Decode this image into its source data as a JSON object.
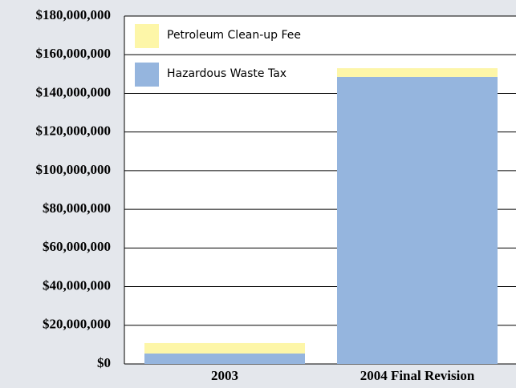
{
  "chart_data": {
    "type": "stacked_bar",
    "categories": [
      "2003",
      "2004 Final Revision"
    ],
    "series": [
      {
        "name": "Hazardous Waste Tax",
        "color": "#95b5de",
        "values": [
          5400000,
          148500000
        ]
      },
      {
        "name": "Petroleum Clean-up Fee",
        "color": "#fdf6a8",
        "values": [
          5400000,
          4500000
        ]
      }
    ],
    "ylim": [
      0,
      180000000
    ],
    "yticks": [
      {
        "value": 0,
        "label": "$0"
      },
      {
        "value": 20000000,
        "label": "$20,000,000"
      },
      {
        "value": 40000000,
        "label": "$40,000,000"
      },
      {
        "value": 60000000,
        "label": "$60,000,000"
      },
      {
        "value": 80000000,
        "label": "$80,000,000"
      },
      {
        "value": 100000000,
        "label": "$100,000,000"
      },
      {
        "value": 120000000,
        "label": "$120,000,000"
      },
      {
        "value": 140000000,
        "label": "$140,000,000"
      },
      {
        "value": 160000000,
        "label": "$160,000,000"
      },
      {
        "value": 180000000,
        "label": "$180,000,000"
      }
    ],
    "grid": true
  }
}
